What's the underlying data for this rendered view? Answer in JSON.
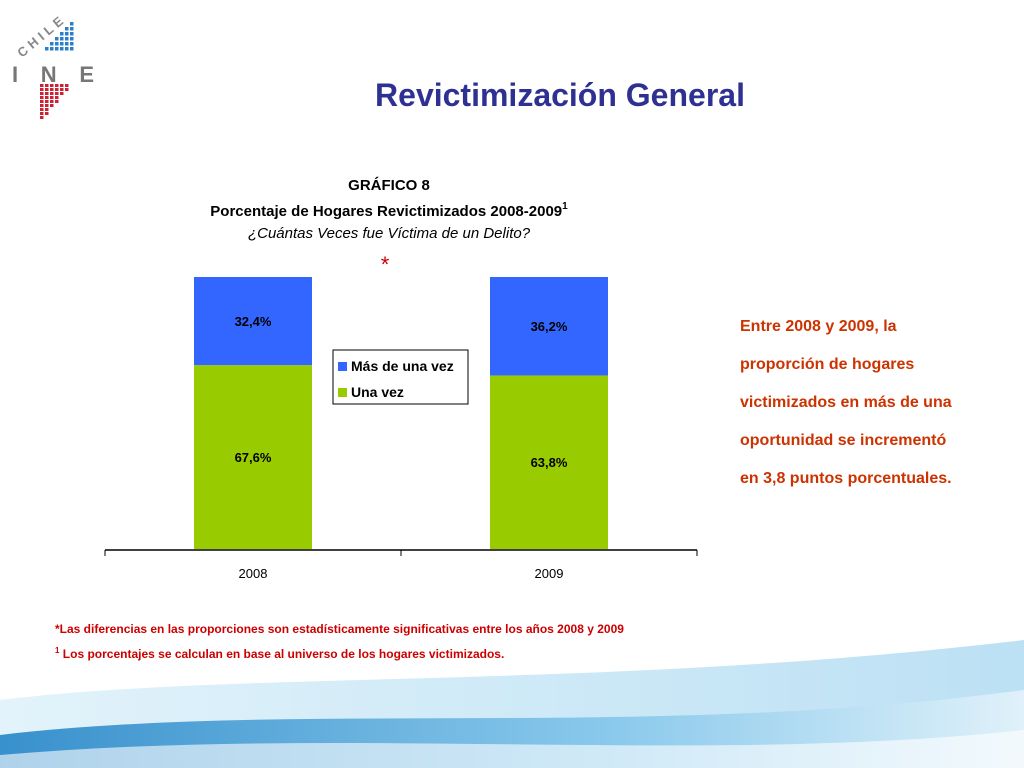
{
  "logo": {
    "country": "CHILE",
    "name": "INE"
  },
  "title": "Revictimización General",
  "chart_data": {
    "type": "bar",
    "stacked": true,
    "title": "GRÁFICO 8",
    "subtitle": "Porcentaje de Hogares Revictimizados 2008-2009",
    "subtitle_note": "1",
    "question": "¿Cuántas Veces fue Víctima de un Delito?",
    "annotation": "*",
    "categories": [
      "2008",
      "2009"
    ],
    "series": [
      {
        "name": "Una vez",
        "color": "#99cc00",
        "values": [
          67.6,
          63.8
        ],
        "value_labels": [
          "67,6%",
          "63,8%"
        ]
      },
      {
        "name": "Más de una vez",
        "color": "#3366ff",
        "values": [
          32.4,
          36.2
        ],
        "value_labels": [
          "32,4%",
          "36,2%"
        ]
      }
    ],
    "ylim": [
      0,
      100
    ],
    "legend": "center"
  },
  "side_text": [
    "Entre 2008 y 2009, la",
    "proporción de hogares",
    "victimizados en más de una",
    "oportunidad se incrementó",
    "en 3,8 puntos porcentuales."
  ],
  "footnotes": [
    {
      "text": "*Las diferencias en las proporciones son estadísticamente significativas entre los años 2008 y 2009"
    },
    {
      "mark": "1",
      "text": " Los porcentajes se calculan en base al universo de los hogares victimizados."
    }
  ]
}
